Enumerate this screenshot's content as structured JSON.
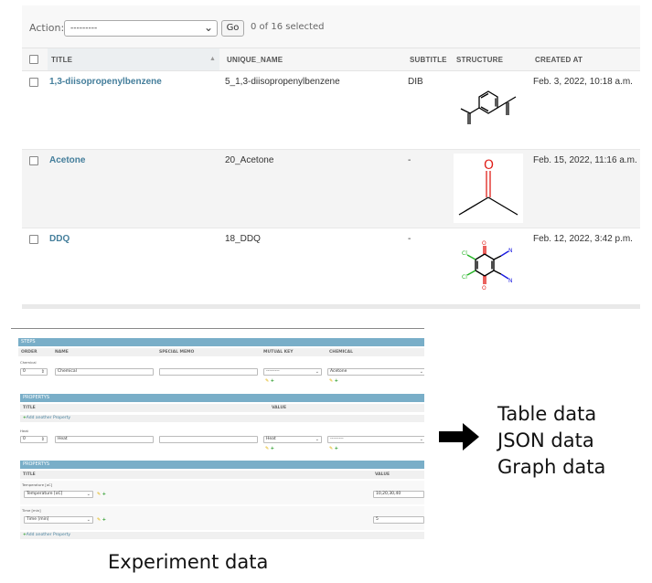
{
  "changelist": {
    "action_label": "Action:",
    "action_select_value": "---------",
    "go_label": "Go",
    "selected_count": "0 of 16 selected",
    "columns": [
      "TITLE",
      "UNIQUE_NAME",
      "SUBTITLE",
      "STRUCTURE",
      "CREATED AT"
    ],
    "rows": [
      {
        "title": "1,3-diisopropenylbenzene",
        "unique_name": "5_1,3-diisopropenylbenzene",
        "subtitle": "DIB",
        "structure": "diisopropenylbenzene-structure",
        "created_at": "Feb. 3, 2022, 10:18 a.m."
      },
      {
        "title": "Acetone",
        "unique_name": "20_Acetone",
        "subtitle": "-",
        "structure": "acetone-structure",
        "created_at": "Feb. 15, 2022, 11:16 a.m."
      },
      {
        "title": "DDQ",
        "unique_name": "18_DDQ",
        "subtitle": "-",
        "structure": "ddq-structure",
        "created_at": "Feb. 12, 2022, 3:42 p.m."
      }
    ]
  },
  "experiment_form": {
    "steps_title": "STEPS",
    "columns": [
      "ORDER",
      "NAME",
      "SPECIAL MEMO",
      "MUTUAL KEY",
      "CHEMICAL"
    ],
    "step1": {
      "label": "Chemical",
      "order": "0",
      "name": "Chemical",
      "mutual_key": "---------",
      "chemical": "Acetone",
      "properties_title": "PROPERTYS",
      "prop_columns": [
        "TITLE",
        "VALUE"
      ],
      "add_label": "Add another Property"
    },
    "step2": {
      "label": "Heat",
      "order": "0",
      "name": "Heat",
      "mutual_key": "Heat",
      "chemical": "---------",
      "properties_title": "PROPERTYS",
      "prop_columns": [
        "TITLE",
        "VALUE"
      ],
      "properties": [
        {
          "label": "Temperature [oC]",
          "select": "Temperature [oC]",
          "value": "10,20,30,40"
        },
        {
          "label": "Time [min]",
          "select": "Time [min]",
          "value": "5"
        }
      ],
      "add_label": "Add another Property"
    },
    "caption": "Experiment data"
  },
  "outputs": {
    "arrow_icon": "right-arrow-icon",
    "labels": [
      "Table data",
      "JSON data",
      "Graph data"
    ]
  },
  "colors": {
    "link": "#447e9b",
    "module_header": "#79aec8",
    "oxygen": "#e0201a",
    "nitrogen": "#1a1ae0",
    "chlorine": "#22b322"
  }
}
